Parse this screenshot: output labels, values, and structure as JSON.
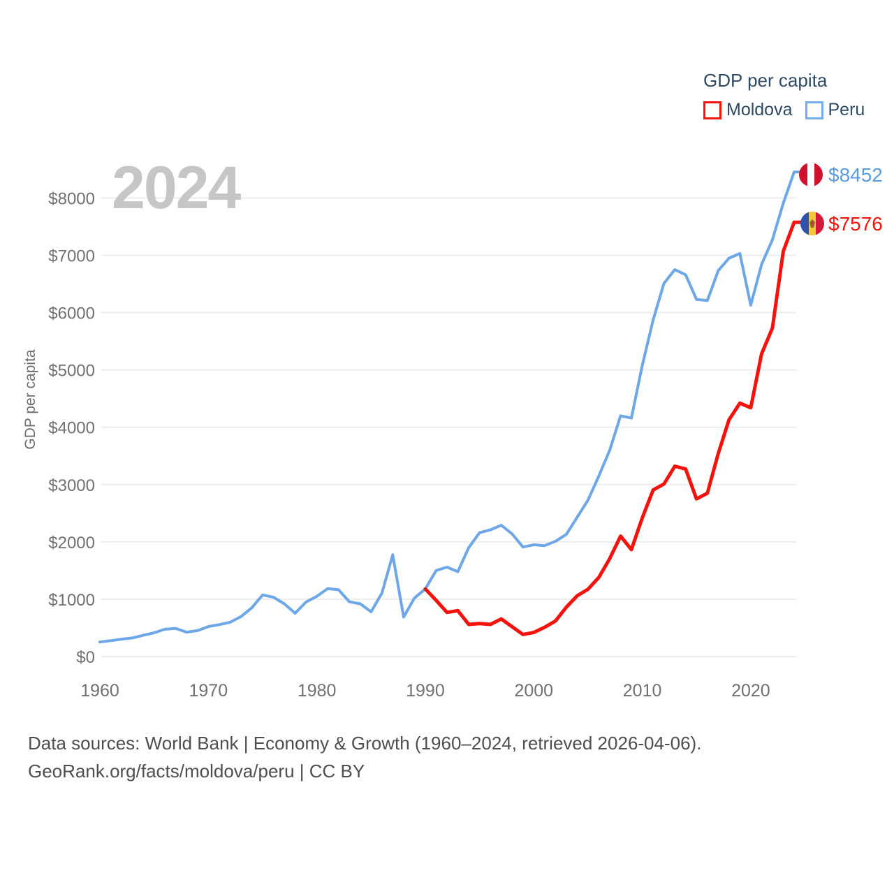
{
  "legend": {
    "title": "GDP per capita",
    "items": [
      {
        "label": "Moldova",
        "color": "#f5120d"
      },
      {
        "label": "Peru",
        "color": "#74aee8"
      }
    ]
  },
  "watermark": "2024",
  "y_axis_title": "GDP per capita",
  "footer": {
    "line1": "Data sources: World Bank | Economy & Growth (1960–2024, retrieved 2026-04-06).",
    "line2": "GeoRank.org/facts/moldova/peru | CC BY"
  },
  "end_labels": [
    {
      "series": "Peru",
      "text": "$8452",
      "color": "#5b9be1",
      "flag": "peru-flag-icon"
    },
    {
      "series": "Moldova",
      "text": "$7576",
      "color": "#f5120d",
      "flag": "moldova-flag-icon"
    }
  ],
  "colors": {
    "moldova_line": "#f5120d",
    "peru_line": "#6ea7e8",
    "gridline": "#ededed",
    "tick_text": "#717171",
    "watermark": "#c6c6c6",
    "legend_text": "#2e4a63",
    "footer_text": "#4e4e4e",
    "peru_flag_red": "#cf122e",
    "moldova_flag_blue": "#2a52b0",
    "moldova_flag_yellow": "#f2c83b",
    "moldova_flag_red": "#d6173c"
  },
  "chart_data": {
    "type": "line",
    "title": "GDP per capita",
    "xlabel": "",
    "ylabel": "GDP per capita",
    "x_ticks": [
      1960,
      1970,
      1980,
      1990,
      2000,
      2010,
      2020
    ],
    "y_ticks": [
      0,
      1000,
      2000,
      3000,
      4000,
      5000,
      6000,
      7000,
      8000
    ],
    "y_tick_prefix": "$",
    "xlim": [
      1960,
      2024
    ],
    "ylim": [
      0,
      8600
    ],
    "grid": true,
    "legend_position": "top-right",
    "series": [
      {
        "name": "Peru",
        "color": "#6ea7e8",
        "start_year": 1960,
        "end_value_label": "$8452",
        "values": [
          254,
          276,
          303,
          324,
          371,
          414,
          477,
          490,
          425,
          452,
          523,
          557,
          597,
          696,
          849,
          1075,
          1035,
          920,
          755,
          950,
          1050,
          1185,
          1165,
          955,
          920,
          780,
          1105,
          1775,
          690,
          1020,
          1180,
          1500,
          1560,
          1480,
          1900,
          2160,
          2210,
          2290,
          2140,
          1910,
          1950,
          1935,
          2010,
          2130,
          2430,
          2730,
          3150,
          3600,
          4200,
          4160,
          5080,
          5870,
          6510,
          6750,
          6660,
          6230,
          6210,
          6730,
          6950,
          7030,
          6130,
          6840,
          7270,
          7910,
          8452
        ]
      },
      {
        "name": "Moldova",
        "color": "#f5120d",
        "start_year": 1990,
        "end_value_label": "$7576",
        "values": [
          1180,
          980,
          770,
          800,
          560,
          575,
          560,
          655,
          520,
          385,
          420,
          510,
          620,
          860,
          1060,
          1175,
          1380,
          1710,
          2100,
          1865,
          2420,
          2905,
          3010,
          3320,
          3270,
          2750,
          2850,
          3540,
          4130,
          4420,
          4340,
          5280,
          5730,
          7070,
          7576
        ]
      }
    ]
  }
}
